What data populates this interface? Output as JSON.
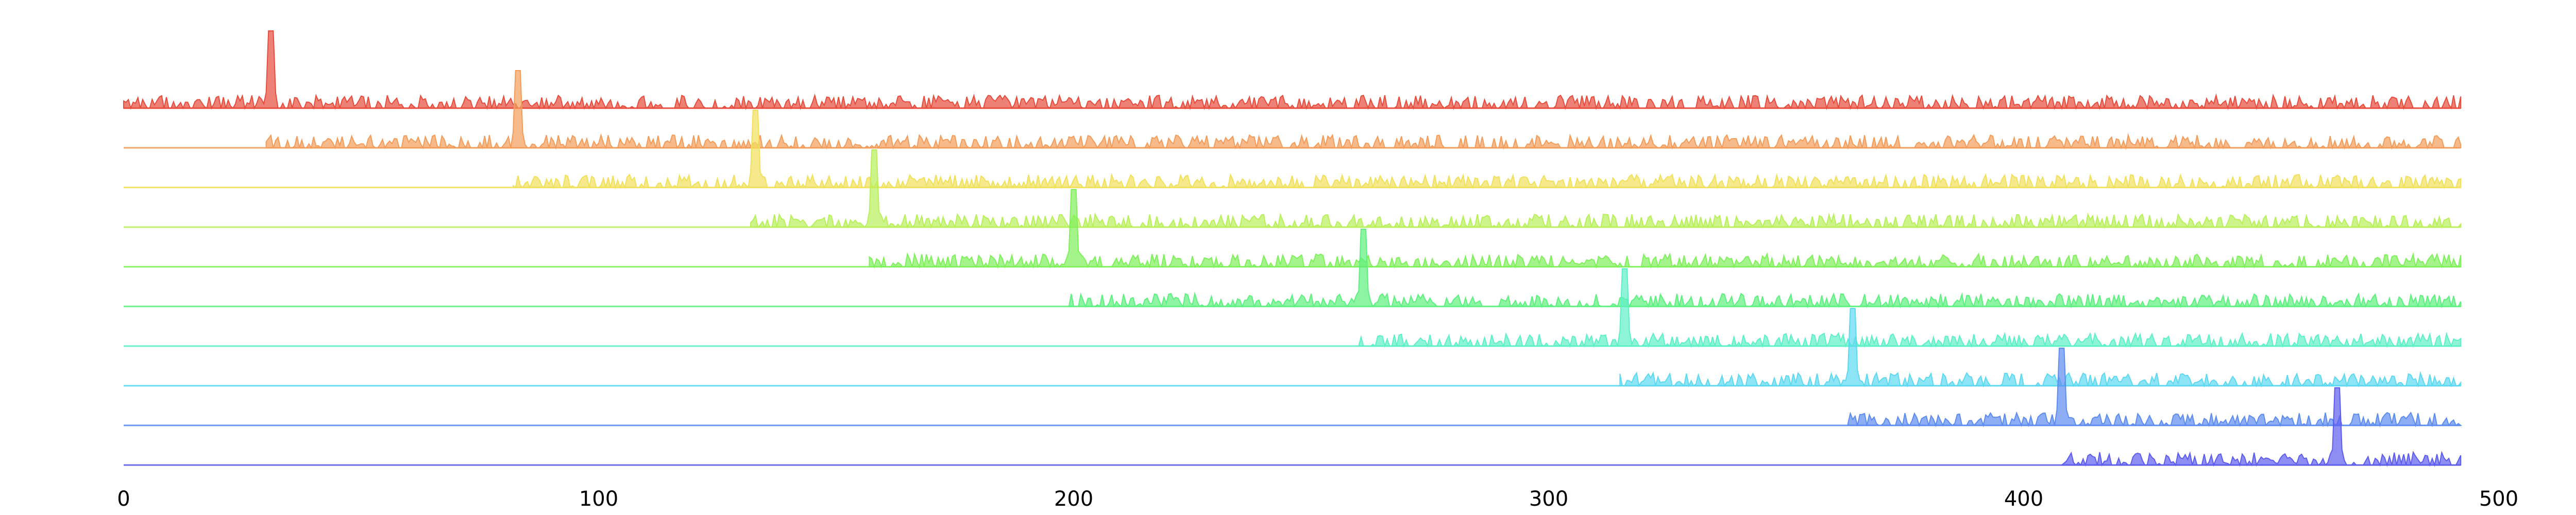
{
  "chart_data": {
    "type": "area",
    "title": "",
    "xlabel": "",
    "ylabel": "",
    "xlim": [
      0,
      500
    ],
    "x_ticks": [
      "0",
      "100",
      "200",
      "300",
      "400",
      "500"
    ],
    "grid": false,
    "legend": "none",
    "series": [
      {
        "color": "#e74c3c",
        "x_start": 0,
        "x_end": 492,
        "peak_x": 31
      },
      {
        "color": "#f39c5a",
        "x_start": 30,
        "x_end": 492,
        "peak_x": 83
      },
      {
        "color": "#f1e05a",
        "x_start": 82,
        "x_end": 492,
        "peak_x": 133
      },
      {
        "color": "#b8f05a",
        "x_start": 132,
        "x_end": 492,
        "peak_x": 158
      },
      {
        "color": "#7ef05a",
        "x_start": 157,
        "x_end": 492,
        "peak_x": 200
      },
      {
        "color": "#5cf07e",
        "x_start": 199,
        "x_end": 492,
        "peak_x": 261
      },
      {
        "color": "#5cf0c8",
        "x_start": 260,
        "x_end": 492,
        "peak_x": 316
      },
      {
        "color": "#5cd8f0",
        "x_start": 315,
        "x_end": 492,
        "peak_x": 364
      },
      {
        "color": "#5c8cf0",
        "x_start": 363,
        "x_end": 492,
        "peak_x": 408
      },
      {
        "color": "#5c5cf0",
        "x_start": 408,
        "x_end": 492,
        "peak_x": 466
      }
    ]
  }
}
